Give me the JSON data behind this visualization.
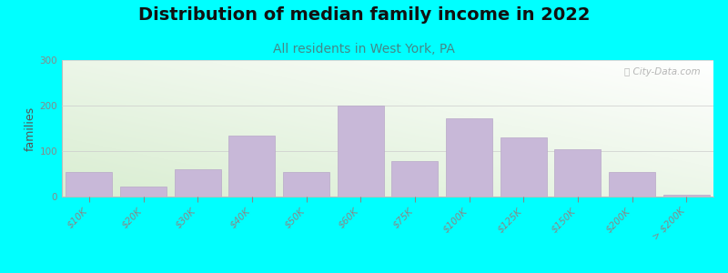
{
  "title": "Distribution of median family income in 2022",
  "subtitle": "All residents in West York, PA",
  "ylabel": "families",
  "background_color": "#00FFFF",
  "bar_color": "#c8b8d8",
  "bar_edge_color": "#b8a8c8",
  "categories": [
    "$10K",
    "$20K",
    "$30K",
    "$40K",
    "$50K",
    "$60K",
    "$75K",
    "$100K",
    "$125K",
    "$150K",
    "$200K",
    "> $200K"
  ],
  "values": [
    55,
    22,
    60,
    135,
    55,
    200,
    78,
    173,
    130,
    105,
    55,
    5
  ],
  "ylim": [
    0,
    300
  ],
  "yticks": [
    0,
    100,
    200,
    300
  ],
  "title_fontsize": 14,
  "subtitle_fontsize": 10,
  "ylabel_fontsize": 9,
  "tick_fontsize": 7.5,
  "watermark": "ⓘ City-Data.com",
  "subtitle_color": "#448888",
  "title_color": "#111111"
}
